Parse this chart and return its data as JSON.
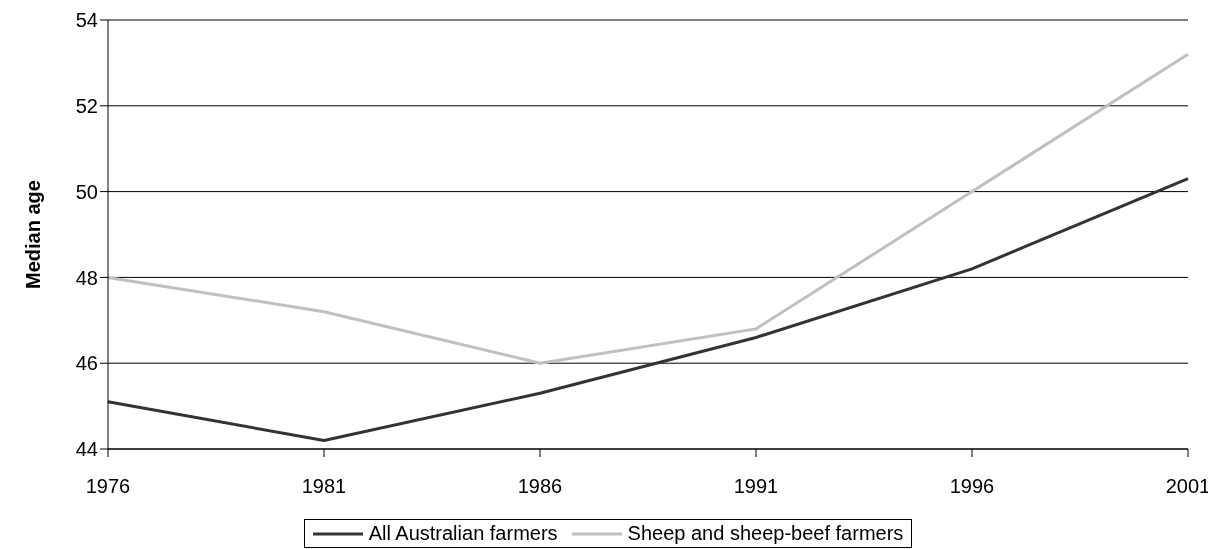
{
  "chart_data": {
    "type": "line",
    "ylabel": "Median age",
    "categories": [
      "1976",
      "1981",
      "1986",
      "1991",
      "1996",
      "2001"
    ],
    "series": [
      {
        "name": "All Australian farmers",
        "color": "#333333",
        "values": [
          45.1,
          44.2,
          45.3,
          46.6,
          48.2,
          50.3
        ]
      },
      {
        "name": "Sheep and sheep-beef farmers",
        "color": "#c0c0c0",
        "values": [
          48.0,
          47.2,
          46.0,
          46.8,
          50.0,
          53.2
        ]
      }
    ],
    "ylim": [
      44,
      54
    ],
    "yticks": [
      44,
      46,
      48,
      50,
      52,
      54
    ],
    "grid": "y",
    "legend": "bottom",
    "marker": "none",
    "line_style": "solid"
  }
}
